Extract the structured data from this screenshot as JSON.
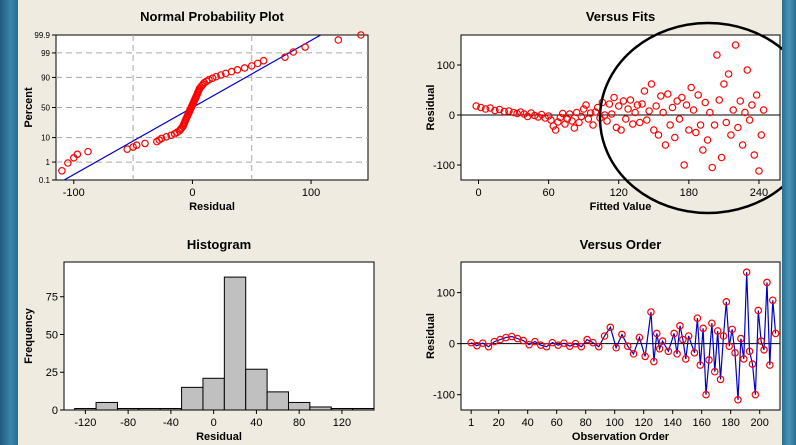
{
  "chart_data": [
    {
      "type": "scatter",
      "title": "Normal Probability Plot",
      "xlabel": "Residual",
      "ylabel": "Percent",
      "xlim": [
        -115,
        148
      ],
      "xticks": [
        -100,
        0,
        100
      ],
      "yticks": [
        "0.1",
        "1",
        "10",
        "50",
        "90",
        "99",
        "99.9"
      ],
      "y_scale": "normal-probability",
      "grid": true,
      "fit_line_color": "#0000cc",
      "marker_color": "#ff0000",
      "points": [
        [
          -110,
          0.35
        ],
        [
          -105,
          0.9
        ],
        [
          -100,
          1.6
        ],
        [
          -97,
          2.3
        ],
        [
          -88,
          3.0
        ],
        [
          -55,
          3.8
        ],
        [
          -50,
          4.6
        ],
        [
          -47,
          5.4
        ],
        [
          -40,
          6.3
        ],
        [
          -30,
          7.3
        ],
        [
          -28,
          8.3
        ],
        [
          -26,
          9.4
        ],
        [
          -22,
          10.6
        ],
        [
          -18,
          11.8
        ],
        [
          -15,
          13.1
        ],
        [
          -13,
          14.5
        ],
        [
          -11,
          16.0
        ],
        [
          -10,
          17.6
        ],
        [
          -9,
          19.2
        ],
        [
          -8,
          21.0
        ],
        [
          -7.5,
          22.8
        ],
        [
          -7,
          24.7
        ],
        [
          -6.5,
          26.6
        ],
        [
          -6,
          28.6
        ],
        [
          -5.5,
          30.6
        ],
        [
          -5,
          32.7
        ],
        [
          -4.5,
          34.8
        ],
        [
          -4,
          36.9
        ],
        [
          -3.5,
          39.0
        ],
        [
          -3,
          41.2
        ],
        [
          -2.5,
          43.4
        ],
        [
          -2,
          45.6
        ],
        [
          -1.5,
          47.8
        ],
        [
          -1,
          50.0
        ],
        [
          -0.5,
          52.2
        ],
        [
          0,
          54.4
        ],
        [
          0.5,
          56.6
        ],
        [
          1,
          58.8
        ],
        [
          1.5,
          61.0
        ],
        [
          2,
          63.1
        ],
        [
          2.5,
          65.2
        ],
        [
          3,
          67.3
        ],
        [
          3.5,
          69.4
        ],
        [
          4,
          71.4
        ],
        [
          4.5,
          73.4
        ],
        [
          5,
          75.3
        ],
        [
          5.5,
          77.2
        ],
        [
          6,
          79.0
        ],
        [
          7,
          80.8
        ],
        [
          8,
          82.4
        ],
        [
          9,
          84.0
        ],
        [
          10,
          85.5
        ],
        [
          12,
          86.9
        ],
        [
          14,
          88.2
        ],
        [
          17,
          89.4
        ],
        [
          20,
          90.6
        ],
        [
          24,
          91.7
        ],
        [
          28,
          92.7
        ],
        [
          33,
          93.7
        ],
        [
          38,
          94.6
        ],
        [
          44,
          95.4
        ],
        [
          50,
          96.2
        ],
        [
          55,
          97.0
        ],
        [
          60,
          97.7
        ],
        [
          78,
          98.4
        ],
        [
          85,
          99.1
        ],
        [
          95,
          99.5
        ],
        [
          123,
          99.8
        ],
        [
          142,
          99.9
        ]
      ]
    },
    {
      "type": "scatter",
      "title": "Versus Fits",
      "xlabel": "Fitted Value",
      "ylabel": "Residual",
      "xlim": [
        -15,
        258
      ],
      "ylim": [
        -130,
        160
      ],
      "xticks": [
        0,
        60,
        120,
        180,
        240
      ],
      "yticks": [
        -100,
        0,
        100
      ],
      "reference_line": 0,
      "marker_color": "#ff0000",
      "annotation": "ellipse around fitted values > ~120",
      "points": [
        [
          -2,
          18
        ],
        [
          2,
          15
        ],
        [
          6,
          12
        ],
        [
          10,
          14
        ],
        [
          14,
          9
        ],
        [
          18,
          11
        ],
        [
          22,
          7
        ],
        [
          26,
          8
        ],
        [
          30,
          5
        ],
        [
          33,
          3
        ],
        [
          36,
          6
        ],
        [
          39,
          2
        ],
        [
          42,
          -3
        ],
        [
          45,
          4
        ],
        [
          48,
          -1
        ],
        [
          51,
          -4
        ],
        [
          54,
          1
        ],
        [
          57,
          -6
        ],
        [
          60,
          -2
        ],
        [
          62,
          -10
        ],
        [
          64,
          -22
        ],
        [
          66,
          -30
        ],
        [
          68,
          -14
        ],
        [
          70,
          -5
        ],
        [
          72,
          3
        ],
        [
          74,
          -18
        ],
        [
          76,
          -8
        ],
        [
          78,
          2
        ],
        [
          80,
          -12
        ],
        [
          82,
          -26
        ],
        [
          84,
          5
        ],
        [
          86,
          -15
        ],
        [
          88,
          -3
        ],
        [
          90,
          12
        ],
        [
          92,
          20
        ],
        [
          94,
          -8
        ],
        [
          96,
          4
        ],
        [
          98,
          -20
        ],
        [
          100,
          6
        ],
        [
          102,
          15
        ],
        [
          104,
          -6
        ],
        [
          106,
          25
        ],
        [
          108,
          0
        ],
        [
          110,
          -12
        ],
        [
          112,
          22
        ],
        [
          114,
          2
        ],
        [
          116,
          35
        ],
        [
          118,
          -25
        ],
        [
          120,
          18
        ],
        [
          122,
          -30
        ],
        [
          124,
          28
        ],
        [
          126,
          -8
        ],
        [
          128,
          12
        ],
        [
          130,
          30
        ],
        [
          132,
          -18
        ],
        [
          134,
          5
        ],
        [
          136,
          20
        ],
        [
          138,
          -15
        ],
        [
          140,
          22
        ],
        [
          142,
          48
        ],
        [
          144,
          -10
        ],
        [
          146,
          8
        ],
        [
          148,
          62
        ],
        [
          150,
          -30
        ],
        [
          152,
          18
        ],
        [
          154,
          -40
        ],
        [
          156,
          38
        ],
        [
          158,
          5
        ],
        [
          160,
          -60
        ],
        [
          162,
          42
        ],
        [
          164,
          -20
        ],
        [
          166,
          15
        ],
        [
          168,
          -45
        ],
        [
          170,
          28
        ],
        [
          172,
          -8
        ],
        [
          174,
          35
        ],
        [
          176,
          -100
        ],
        [
          178,
          20
        ],
        [
          180,
          -30
        ],
        [
          182,
          55
        ],
        [
          184,
          10
        ],
        [
          186,
          -35
        ],
        [
          188,
          40
        ],
        [
          190,
          -20
        ],
        [
          192,
          -70
        ],
        [
          194,
          25
        ],
        [
          196,
          -50
        ],
        [
          198,
          5
        ],
        [
          200,
          -105
        ],
        [
          202,
          -20
        ],
        [
          204,
          120
        ],
        [
          206,
          30
        ],
        [
          208,
          -85
        ],
        [
          210,
          62
        ],
        [
          212,
          -15
        ],
        [
          214,
          82
        ],
        [
          216,
          -40
        ],
        [
          218,
          10
        ],
        [
          220,
          140
        ],
        [
          222,
          -25
        ],
        [
          224,
          28
        ],
        [
          226,
          -60
        ],
        [
          228,
          5
        ],
        [
          230,
          90
        ],
        [
          232,
          -10
        ],
        [
          234,
          20
        ],
        [
          236,
          -80
        ],
        [
          238,
          40
        ],
        [
          240,
          -112
        ],
        [
          242,
          -40
        ],
        [
          244,
          10
        ]
      ]
    },
    {
      "type": "bar",
      "title": "Histogram",
      "xlabel": "Residual",
      "ylabel": "Frequency",
      "bin_width": 20,
      "bin_start": -130,
      "values": [
        1,
        5,
        1,
        1,
        1,
        15,
        21,
        88,
        27,
        12,
        5,
        2,
        1,
        1
      ],
      "xticks": [
        -120,
        -80,
        -40,
        0,
        40,
        80,
        120
      ],
      "yticks": [
        0,
        25,
        50,
        75
      ],
      "xlim": [
        -140,
        150
      ],
      "ylim": [
        0,
        98
      ],
      "bar_color": "#c0c0c0"
    },
    {
      "type": "line",
      "title": "Versus Order",
      "xlabel": "Observation Order",
      "ylabel": "Residual",
      "xlim": [
        -6,
        214
      ],
      "ylim": [
        -130,
        160
      ],
      "xticks": [
        1,
        20,
        40,
        60,
        80,
        100,
        120,
        140,
        160,
        180,
        200
      ],
      "yticks": [
        -100,
        0,
        100
      ],
      "reference_line": 0,
      "line_color": "#0000cc",
      "marker_color": "#ff0000",
      "points": [
        [
          1,
          2
        ],
        [
          5,
          -4
        ],
        [
          9,
          1
        ],
        [
          13,
          -6
        ],
        [
          17,
          4
        ],
        [
          21,
          8
        ],
        [
          25,
          12
        ],
        [
          29,
          14
        ],
        [
          33,
          10
        ],
        [
          37,
          6
        ],
        [
          41,
          -2
        ],
        [
          45,
          4
        ],
        [
          49,
          -3
        ],
        [
          53,
          -6
        ],
        [
          57,
          2
        ],
        [
          61,
          -3
        ],
        [
          65,
          1
        ],
        [
          69,
          -5
        ],
        [
          73,
          0
        ],
        [
          77,
          -6
        ],
        [
          81,
          8
        ],
        [
          85,
          2
        ],
        [
          89,
          -6
        ],
        [
          93,
          15
        ],
        [
          97,
          32
        ],
        [
          101,
          -8
        ],
        [
          105,
          18
        ],
        [
          109,
          -5
        ],
        [
          113,
          -20
        ],
        [
          117,
          12
        ],
        [
          121,
          -25
        ],
        [
          125,
          62
        ],
        [
          127,
          -35
        ],
        [
          129,
          20
        ],
        [
          131,
          -10
        ],
        [
          133,
          5
        ],
        [
          137,
          -15
        ],
        [
          141,
          20
        ],
        [
          143,
          -20
        ],
        [
          145,
          35
        ],
        [
          147,
          8
        ],
        [
          149,
          -30
        ],
        [
          151,
          15
        ],
        [
          155,
          -18
        ],
        [
          157,
          50
        ],
        [
          159,
          -42
        ],
        [
          161,
          30
        ],
        [
          163,
          -100
        ],
        [
          165,
          -32
        ],
        [
          167,
          40
        ],
        [
          169,
          -55
        ],
        [
          171,
          25
        ],
        [
          173,
          -70
        ],
        [
          175,
          15
        ],
        [
          177,
          82
        ],
        [
          179,
          -5
        ],
        [
          181,
          28
        ],
        [
          183,
          -18
        ],
        [
          185,
          -110
        ],
        [
          187,
          10
        ],
        [
          189,
          -30
        ],
        [
          191,
          140
        ],
        [
          193,
          -15
        ],
        [
          195,
          -40
        ],
        [
          197,
          -100
        ],
        [
          199,
          65
        ],
        [
          201,
          5
        ],
        [
          203,
          -12
        ],
        [
          205,
          120
        ],
        [
          207,
          -42
        ],
        [
          209,
          85
        ],
        [
          211,
          20
        ]
      ]
    }
  ]
}
